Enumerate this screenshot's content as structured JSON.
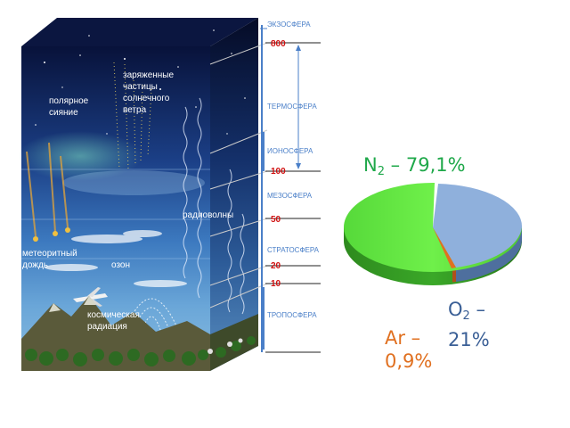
{
  "diagram": {
    "inner_labels": {
      "charged_particles": [
        "заряженные",
        "частицы",
        "солнечного",
        "ветра"
      ],
      "aurora": [
        "полярное",
        "сияние"
      ],
      "radio_waves": "радиоволны",
      "meteor_shower": [
        "метеоритный",
        "дождь"
      ],
      "ozone": "озон",
      "cosmic_radiation": [
        "космическая",
        "радиация"
      ]
    },
    "layers": {
      "exosphere": "ЭКЗОСФЕРА",
      "thermosphere": "ТЕРМОСФЕРА",
      "ionosphere": "ИОНОСФЕРА",
      "mesosphere": "МЕЗОСФЕРА",
      "stratosphere": "СТРАТОСФЕРА",
      "troposphere": "ТРОПОСФЕРА"
    },
    "altitudes": {
      "a800": "800",
      "a100": "100",
      "a50": "50",
      "a20": "20",
      "a10": "10"
    },
    "colors": {
      "altitude_text": "#d01010",
      "layer_text": "#4a7fc8",
      "pie_n2": "#5de33a",
      "pie_o2": "#8fb0dc",
      "pie_ar": "#e07020"
    }
  },
  "composition": {
    "n2": {
      "symbol": "N",
      "sub": "2",
      "text": " – 79,1%",
      "value": 79.1
    },
    "o2": {
      "symbol": "O",
      "sub": "2",
      "text": " –",
      "text2": "21%",
      "value": 21
    },
    "ar": {
      "text": "Ar –",
      "text2": "0,9%",
      "value": 0.9
    }
  }
}
